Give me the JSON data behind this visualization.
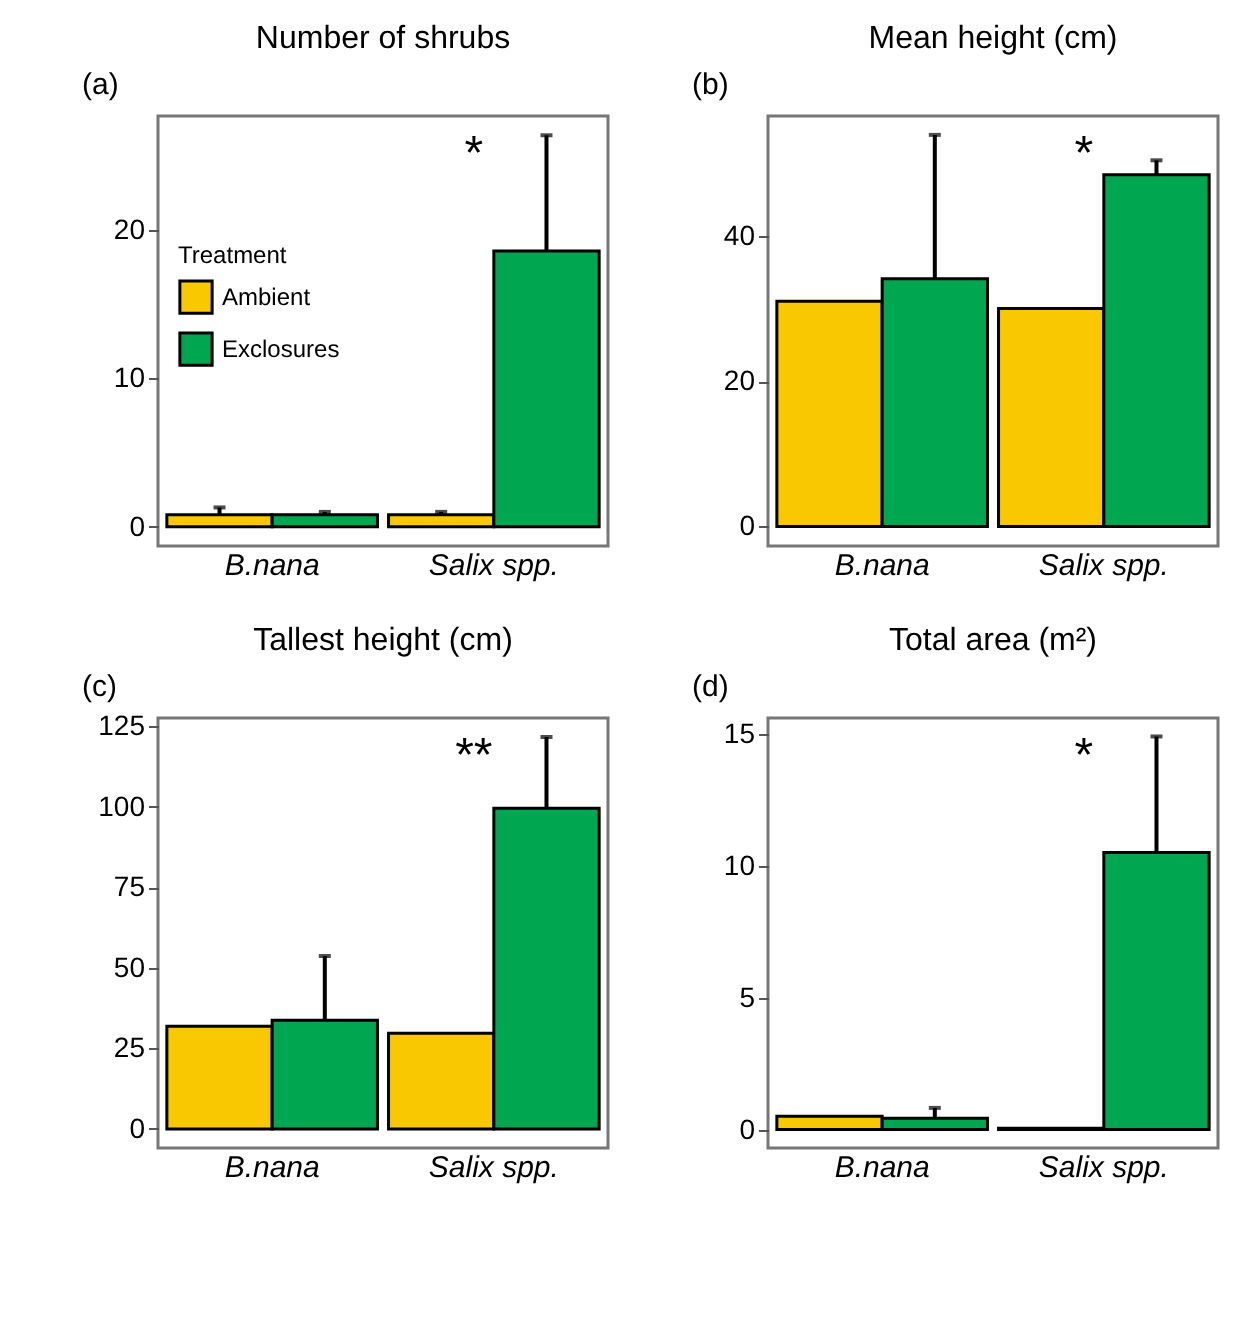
{
  "chart_data": [
    {
      "type": "bar",
      "title": "Number of shrubs",
      "annotations": [
        "(a)",
        "*"
      ],
      "categories": [
        "B.nana",
        "Salix spp."
      ],
      "legend_title": "Treatment",
      "legend": "left",
      "ylim": [
        -1.3,
        27.7
      ],
      "yticks": [
        0,
        10,
        20
      ],
      "grid": false,
      "series": [
        {
          "name": "Ambient",
          "color": "#f9c800",
          "values": [
            0.8,
            0.8
          ],
          "errors": [
            [
              0.8,
              1.3
            ],
            [
              0.8,
              1.0
            ]
          ]
        },
        {
          "name": "Exclosures",
          "color": "#00a650",
          "values": [
            0.8,
            18.6
          ],
          "errors": [
            [
              0.8,
              1.0
            ],
            [
              18.6,
              26.4
            ]
          ]
        }
      ]
    },
    {
      "type": "bar",
      "title": "Mean height (cm)",
      "annotations": [
        "(b)",
        "*"
      ],
      "categories": [
        "B.nana",
        "Salix spp."
      ],
      "ylim": [
        -2.7,
        56.5
      ],
      "yticks": [
        0,
        20,
        40
      ],
      "grid": false,
      "series": [
        {
          "color": "#f9c800",
          "values": [
            31.0,
            30.0
          ]
        },
        {
          "color": "#00a650",
          "values": [
            34.1,
            48.4
          ],
          "errors": [
            [
              34.1,
              53.9
            ],
            [
              48.4,
              50.4
            ]
          ]
        }
      ]
    },
    {
      "type": "bar",
      "title": "Tallest height (cm)",
      "annotations": [
        "(c)",
        "**"
      ],
      "categories": [
        "B.nana",
        "Salix spp."
      ],
      "ylim": [
        -5.9,
        127.6
      ],
      "yticks": [
        0,
        25,
        50,
        75,
        100,
        125
      ],
      "grid": false,
      "series": [
        {
          "color": "#f9c800",
          "values": [
            31.9,
            29.7
          ]
        },
        {
          "color": "#00a650",
          "values": [
            33.8,
            99.6
          ],
          "errors": [
            [
              33.8,
              53.7
            ],
            [
              99.6,
              121.7
            ]
          ]
        }
      ]
    },
    {
      "type": "bar",
      "title": "Total area (m²)",
      "annotations": [
        "(d)",
        "*"
      ],
      "categories": [
        "B.nana",
        "Salix spp."
      ],
      "ylim": [
        -0.7,
        15.6
      ],
      "yticks": [
        0,
        5,
        10,
        15
      ],
      "grid": false,
      "series": [
        {
          "color": "#f9c800",
          "values": [
            0.5,
            0.05
          ]
        },
        {
          "color": "#00a650",
          "values": [
            0.43,
            10.5
          ],
          "errors": [
            [
              0.43,
              0.82
            ],
            [
              10.5,
              14.9
            ]
          ]
        }
      ]
    }
  ]
}
